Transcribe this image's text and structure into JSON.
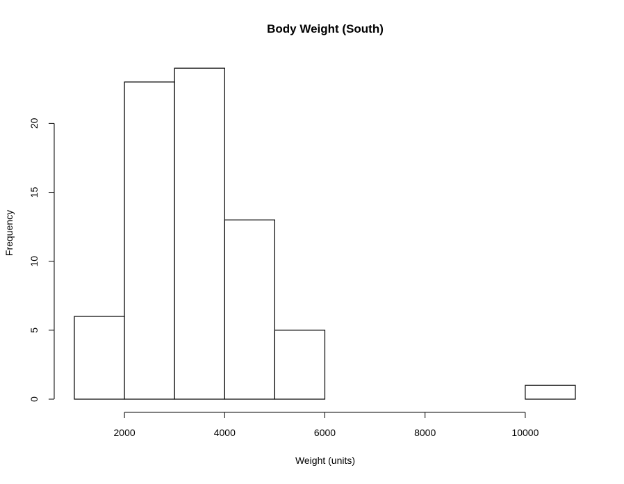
{
  "chart_data": {
    "type": "bar",
    "subtype": "histogram",
    "title": "Body Weight (South)",
    "xlabel": "Weight (units)",
    "ylabel": "Frequency",
    "bins": [
      {
        "start": 1000,
        "end": 2000,
        "count": 6
      },
      {
        "start": 2000,
        "end": 3000,
        "count": 23
      },
      {
        "start": 3000,
        "end": 4000,
        "count": 24
      },
      {
        "start": 4000,
        "end": 5000,
        "count": 13
      },
      {
        "start": 5000,
        "end": 6000,
        "count": 5
      },
      {
        "start": 6000,
        "end": 7000,
        "count": 0
      },
      {
        "start": 7000,
        "end": 8000,
        "count": 0
      },
      {
        "start": 8000,
        "end": 9000,
        "count": 0
      },
      {
        "start": 9000,
        "end": 10000,
        "count": 0
      },
      {
        "start": 10000,
        "end": 11000,
        "count": 1
      }
    ],
    "xlim": [
      1000,
      11000
    ],
    "ylim": [
      0,
      24
    ],
    "x_ticks": [
      "2000",
      "4000",
      "6000",
      "8000",
      "10000"
    ],
    "y_ticks": [
      "0",
      "5",
      "10",
      "15",
      "20"
    ],
    "grid": false,
    "legend": "none",
    "colors": {
      "bar_fill": "#ffffff",
      "bar_stroke": "#000000",
      "background": "#ffffff"
    }
  }
}
